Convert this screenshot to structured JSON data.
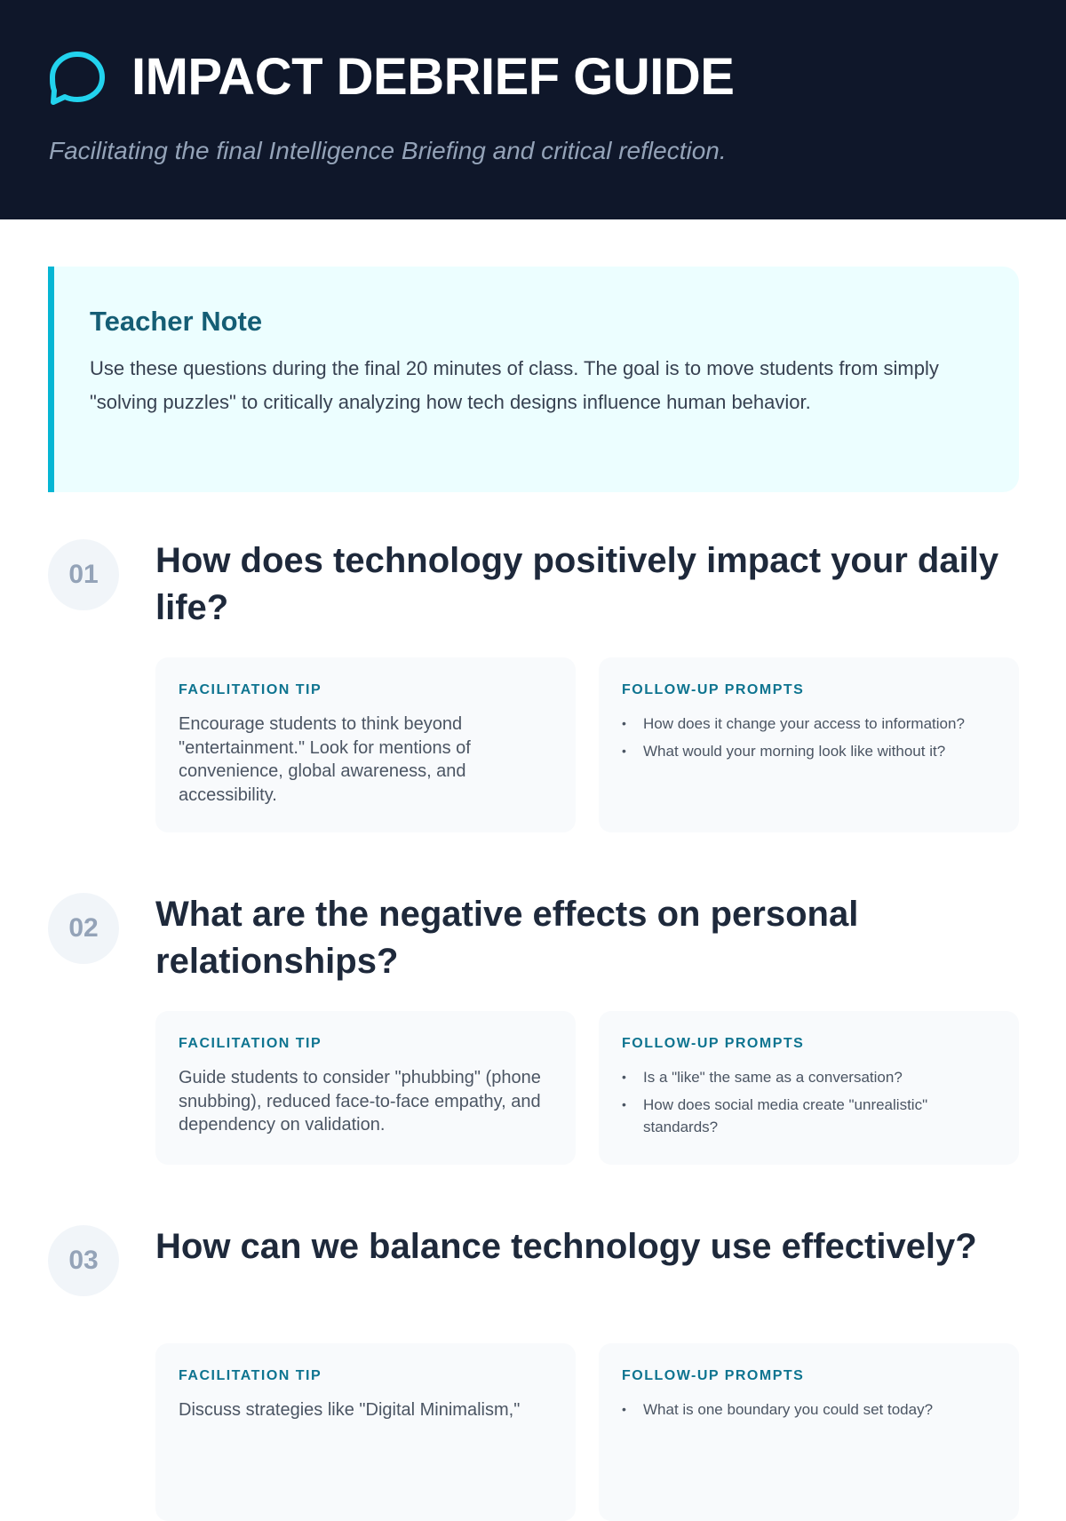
{
  "header": {
    "title": "IMPACT DEBRIEF GUIDE",
    "subtitle": "Facilitating the final Intelligence Briefing and critical reflection.",
    "icon": "chat-bubble-icon",
    "accent": "#22d3ee"
  },
  "teacher_note": {
    "title": "Teacher Note",
    "body": "Use these questions during the final 20 minutes of class. The goal is to move students from simply \"solving puzzles\" to critically analyzing how tech designs influence human behavior."
  },
  "questions": [
    {
      "number": "01",
      "title": "How does technology positively impact your daily life?",
      "tip_label": "FACILITATION TIP",
      "tip": "Encourage students to think beyond \"entertainment.\" Look for mentions of convenience, global awareness, and accessibility.",
      "prompts_label": "FOLLOW-UP PROMPTS",
      "prompts": [
        "How does it change your access to information?",
        "What would your morning look like without it?"
      ]
    },
    {
      "number": "02",
      "title": "What are the negative effects on personal relationships?",
      "tip_label": "FACILITATION TIP",
      "tip": "Guide students to consider \"phubbing\" (phone snubbing), reduced face-to-face empathy, and dependency on validation.",
      "prompts_label": "FOLLOW-UP PROMPTS",
      "prompts": [
        "Is a \"like\" the same as a conversation?",
        "How does social media create \"unrealistic\" standards?"
      ]
    },
    {
      "number": "03",
      "title": "How can we balance technology use effectively?",
      "tip_label": "FACILITATION TIP",
      "tip": "Discuss strategies like \"Digital Minimalism,\"",
      "prompts_label": "FOLLOW-UP PROMPTS",
      "prompts": [
        "What is one boundary you could set today?"
      ]
    }
  ]
}
